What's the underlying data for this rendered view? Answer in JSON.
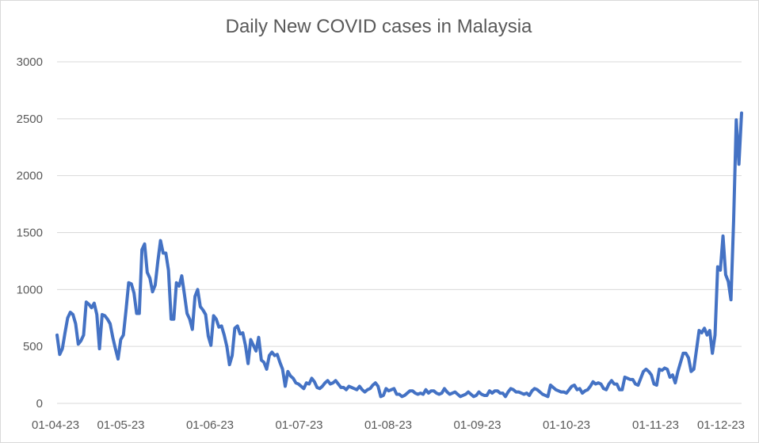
{
  "chart_data": {
    "type": "line",
    "title": "Daily New COVID cases in Malaysia",
    "xlabel": "",
    "ylabel": "",
    "ylim": [
      0,
      3000
    ],
    "yticks": [
      0,
      500,
      1000,
      1500,
      2000,
      2500,
      3000
    ],
    "x_tick_labels": [
      "01-04-23",
      "01-05-23",
      "01-06-23",
      "01-07-23",
      "01-08-23",
      "01-09-23",
      "01-10-23",
      "01-11-23",
      "01-12-23"
    ],
    "x_start": "01-04-23",
    "x_end": "07-12-23",
    "grid": true,
    "legend": "none",
    "series": [
      {
        "color": "#4472c4",
        "values": [
          600,
          430,
          480,
          620,
          750,
          800,
          780,
          700,
          520,
          550,
          600,
          890,
          870,
          840,
          880,
          780,
          480,
          780,
          770,
          740,
          700,
          580,
          480,
          390,
          560,
          600,
          820,
          1060,
          1050,
          970,
          790,
          790,
          1350,
          1400,
          1150,
          1100,
          980,
          1040,
          1250,
          1430,
          1320,
          1320,
          1170,
          740,
          740,
          1060,
          1030,
          1120,
          960,
          790,
          740,
          650,
          940,
          1000,
          850,
          820,
          780,
          590,
          510,
          770,
          740,
          670,
          680,
          600,
          500,
          340,
          420,
          660,
          680,
          610,
          620,
          510,
          350,
          560,
          510,
          460,
          580,
          380,
          360,
          300,
          420,
          450,
          420,
          430,
          360,
          300,
          150,
          280,
          240,
          220,
          180,
          170,
          150,
          130,
          180,
          170,
          220,
          190,
          140,
          130,
          150,
          180,
          200,
          170,
          180,
          200,
          170,
          140,
          140,
          120,
          150,
          140,
          130,
          120,
          150,
          120,
          100,
          120,
          130,
          160,
          180,
          150,
          60,
          70,
          130,
          110,
          120,
          130,
          80,
          80,
          60,
          70,
          90,
          110,
          110,
          90,
          80,
          90,
          80,
          120,
          90,
          110,
          110,
          90,
          80,
          90,
          130,
          100,
          80,
          90,
          100,
          80,
          60,
          70,
          80,
          100,
          80,
          60,
          70,
          100,
          80,
          70,
          70,
          110,
          90,
          110,
          110,
          90,
          90,
          60,
          100,
          130,
          120,
          100,
          100,
          90,
          80,
          90,
          70,
          110,
          130,
          120,
          100,
          80,
          70,
          60,
          160,
          140,
          120,
          110,
          100,
          100,
          90,
          120,
          150,
          160,
          120,
          130,
          90,
          110,
          120,
          150,
          190,
          170,
          180,
          170,
          130,
          120,
          170,
          200,
          170,
          170,
          120,
          120,
          230,
          220,
          210,
          210,
          170,
          160,
          220,
          280,
          300,
          280,
          250,
          170,
          160,
          300,
          290,
          310,
          300,
          230,
          250,
          180,
          280,
          360,
          440,
          440,
          400,
          280,
          300,
          470,
          640,
          620,
          660,
          600,
          640,
          440,
          600,
          1200,
          1170,
          1470,
          1130,
          1070,
          910,
          1600,
          2490,
          2100,
          2550
        ]
      }
    ]
  }
}
